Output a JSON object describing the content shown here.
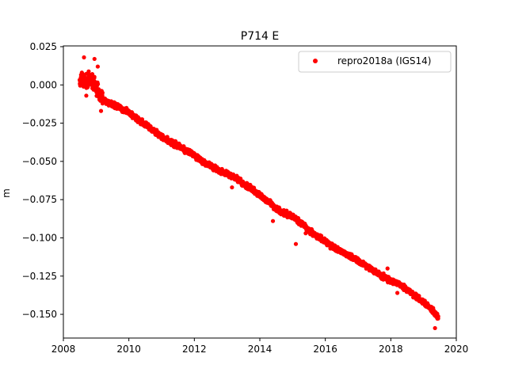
{
  "chart_data": {
    "type": "scatter",
    "title": "P714 E",
    "xlabel": "",
    "ylabel": "m",
    "xlim": [
      2008.0,
      2020.0
    ],
    "ylim": [
      -0.1655,
      0.0255
    ],
    "xticks": [
      2008,
      2010,
      2012,
      2014,
      2016,
      2018,
      2020
    ],
    "xtick_labels": [
      "2008",
      "2010",
      "2012",
      "2014",
      "2016",
      "2018",
      "2020"
    ],
    "yticks": [
      0.025,
      0.0,
      -0.025,
      -0.05,
      -0.075,
      -0.1,
      -0.125,
      -0.15
    ],
    "ytick_labels": [
      "0.025",
      "0.000",
      "−0.025",
      "−0.050",
      "−0.075",
      "−0.100",
      "−0.125",
      "−0.150"
    ],
    "grid": false,
    "legend": {
      "position": "top-right"
    },
    "series": [
      {
        "name": "repro2018a (IGS14)",
        "color": "#ff0000",
        "marker": "circle",
        "x": [
          2008.5,
          2008.6,
          2008.7,
          2008.8,
          2008.9,
          2009.0,
          2009.1,
          2009.25,
          2009.5,
          2009.75,
          2010.0,
          2010.25,
          2010.5,
          2010.75,
          2011.0,
          2011.25,
          2011.5,
          2011.75,
          2012.0,
          2012.25,
          2012.5,
          2012.75,
          2013.0,
          2013.25,
          2013.5,
          2013.75,
          2014.0,
          2014.25,
          2014.5,
          2014.75,
          2015.0,
          2015.25,
          2015.5,
          2015.75,
          2016.0,
          2016.25,
          2016.5,
          2016.75,
          2017.0,
          2017.25,
          2017.5,
          2017.75,
          2018.0,
          2018.25,
          2018.5,
          2018.75,
          2019.0,
          2019.25,
          2019.45
        ],
        "y": [
          0.002,
          0.003,
          0.001,
          0.004,
          0.002,
          -0.002,
          -0.006,
          -0.01,
          -0.013,
          -0.015,
          -0.018,
          -0.022,
          -0.026,
          -0.03,
          -0.034,
          -0.037,
          -0.04,
          -0.043,
          -0.046,
          -0.05,
          -0.053,
          -0.056,
          -0.058,
          -0.061,
          -0.065,
          -0.068,
          -0.072,
          -0.076,
          -0.081,
          -0.084,
          -0.086,
          -0.09,
          -0.095,
          -0.099,
          -0.102,
          -0.106,
          -0.109,
          -0.112,
          -0.115,
          -0.118,
          -0.122,
          -0.125,
          -0.128,
          -0.13,
          -0.134,
          -0.138,
          -0.142,
          -0.147,
          -0.152
        ],
        "outliers": [
          [
            2008.63,
            0.018
          ],
          [
            2008.95,
            0.017
          ],
          [
            2009.05,
            0.012
          ],
          [
            2008.7,
            -0.007
          ],
          [
            2009.15,
            -0.017
          ],
          [
            2013.15,
            -0.067
          ],
          [
            2014.4,
            -0.089
          ],
          [
            2015.1,
            -0.104
          ],
          [
            2015.4,
            -0.097
          ],
          [
            2017.9,
            -0.12
          ],
          [
            2018.2,
            -0.136
          ],
          [
            2019.35,
            -0.159
          ]
        ]
      }
    ]
  }
}
